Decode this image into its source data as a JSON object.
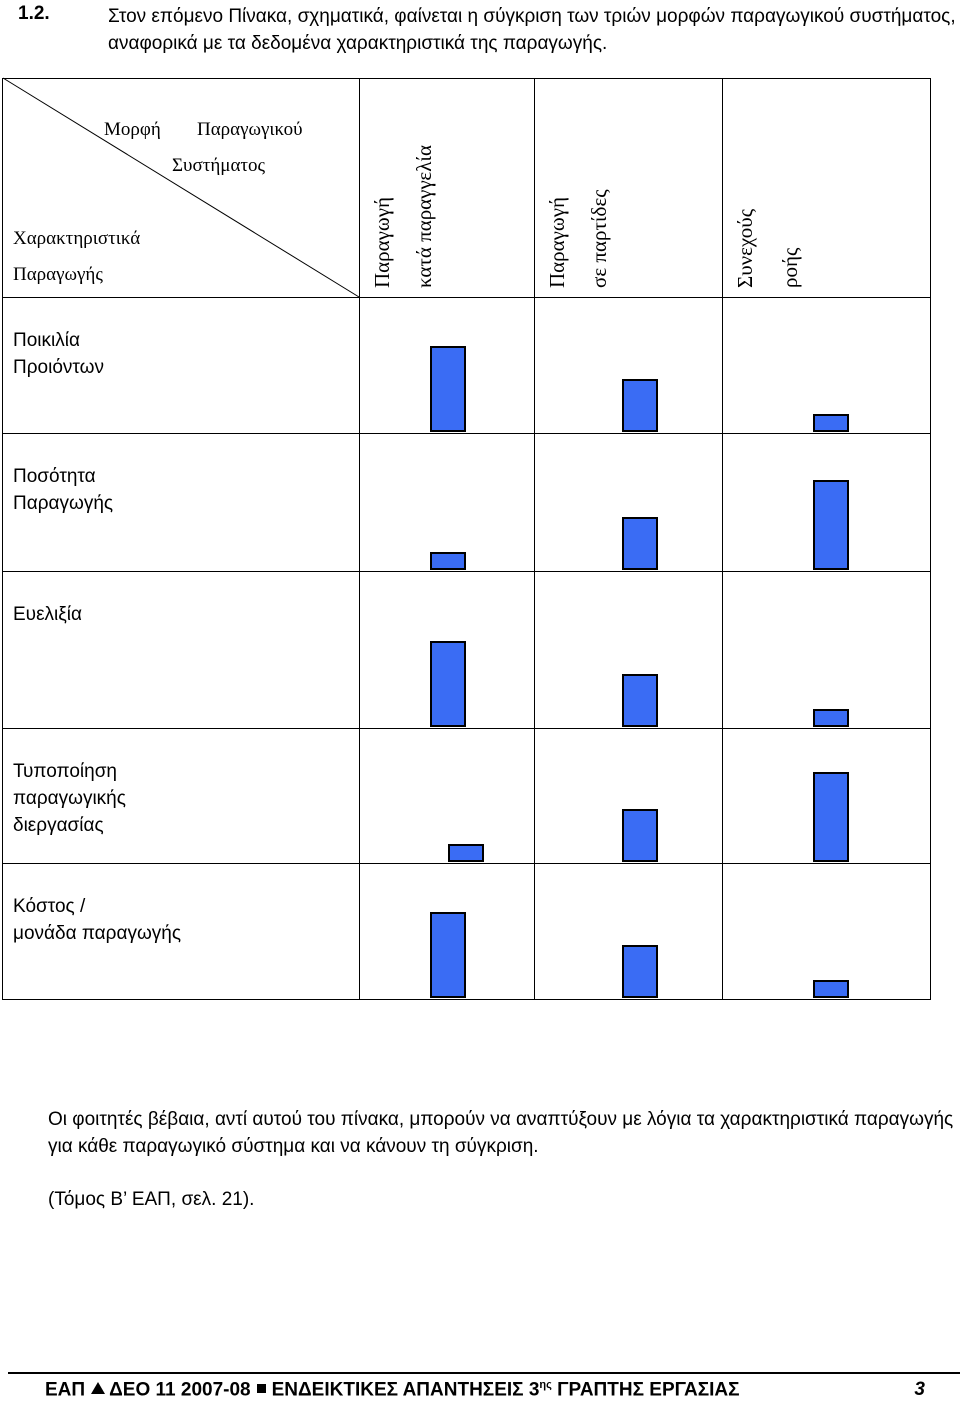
{
  "heading": {
    "number": "1.2.",
    "text": "Στον επόμενο Πίνακα, σχηματικά, φαίνεται η σύγκριση των τριών μορφών παραγωγικού συστήματος, αναφορικά με τα δεδομένα χαρακτηριστικά της παραγωγής."
  },
  "table": {
    "corner": {
      "top_word1": "Μορφή",
      "top_word2": "Παραγωγικού",
      "top_word3": "Συστήματος",
      "bottom_line1": "Χαρακτηριστικά",
      "bottom_line2": "Παραγωγής"
    },
    "columns": [
      {
        "line1": "Παραγωγή",
        "line2": "κατά παραγγελία"
      },
      {
        "line1": "Παραγωγή",
        "line2": "σε παρτίδες"
      },
      {
        "line1": "Συνεχούς",
        "line2": "ροής"
      }
    ],
    "rows": [
      {
        "label_lines": [
          "Ποικιλία",
          "Προιόντων"
        ],
        "levels": [
          0.95,
          0.59,
          0.2
        ]
      },
      {
        "label_lines": [
          "Ποσότητα",
          "Παραγωγής"
        ],
        "levels": [
          0.2,
          0.59,
          1.0
        ]
      },
      {
        "label_lines": [
          "Ευελιξία"
        ],
        "levels": [
          0.95,
          0.59,
          0.2
        ]
      },
      {
        "label_lines": [
          "Τυποποίηση",
          "παραγωγικής",
          "διεργασίας"
        ],
        "levels": [
          0.2,
          0.59,
          1.0
        ]
      },
      {
        "label_lines": [
          "Κόστος /",
          "μονάδα παραγωγής"
        ],
        "levels": [
          0.95,
          0.59,
          0.2
        ]
      }
    ],
    "bar_color": "#3a6cf4"
  },
  "note": "Οι φοιτητές βέβαια, αντί αυτού του πίνακα, μπορούν να αναπτύξουν με λόγια τα χαρακτηριστικά παραγωγής για κάθε παραγωγικό σύστημα και να κάνουν τη σύγκριση.",
  "source": "(Τόμος Β’ ΕΑΠ, σελ. 21).",
  "footer": {
    "part1": "ΕΑΠ",
    "part2": "ΔΕΟ 11 2007-08",
    "part3": "ΕΝΔΕΙΚΤΙΚΕΣ ΑΠΑΝΤΗΣΕΙΣ 3",
    "superscript": "ης",
    "part4": "ΓΡΑΠΤΗΣ ΕΡΓΑΣΙΑΣ",
    "page": "3"
  }
}
